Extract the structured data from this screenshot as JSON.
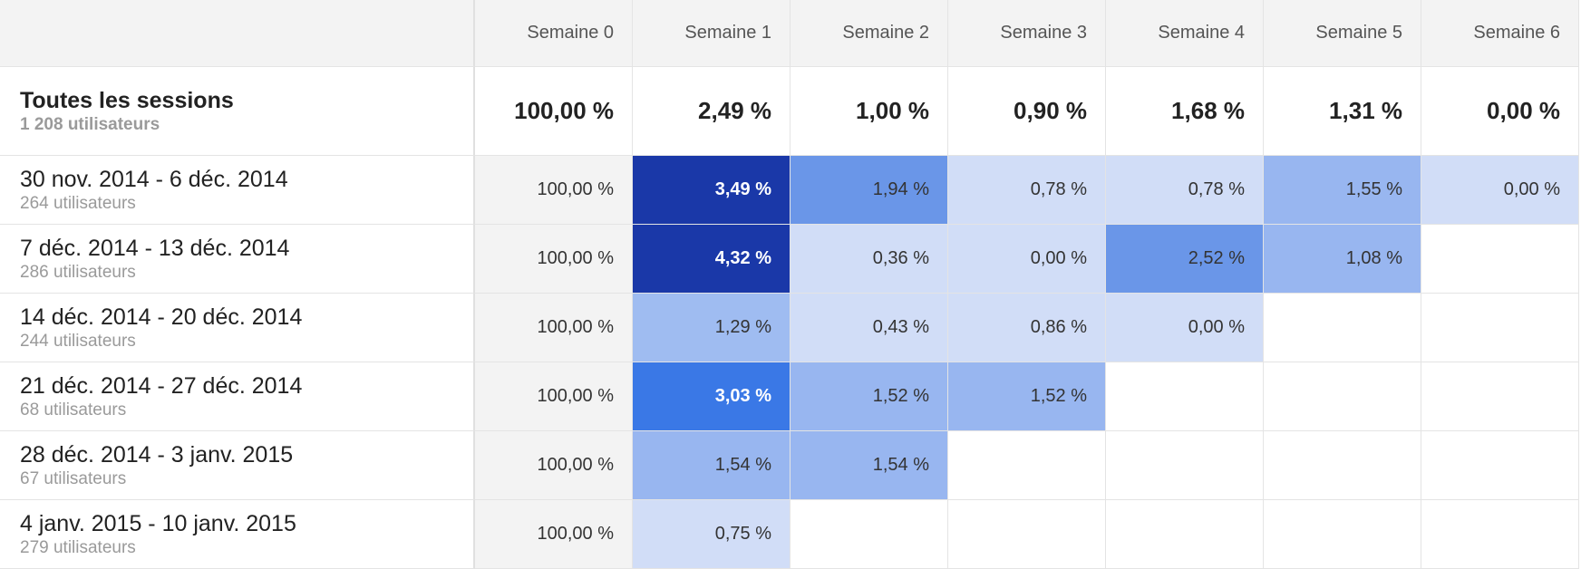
{
  "columns": [
    "Semaine 0",
    "Semaine 1",
    "Semaine 2",
    "Semaine 3",
    "Semaine 4",
    "Semaine 5",
    "Semaine 6"
  ],
  "total": {
    "label": "Toutes les sessions",
    "users": "1 208 utilisateurs",
    "values": [
      "100,00 %",
      "2,49 %",
      "1,00 %",
      "0,90 %",
      "1,68 %",
      "1,31 %",
      "0,00 %"
    ]
  },
  "rows": [
    {
      "label": "30 nov. 2014 - 6 déc. 2014",
      "users": "264 utilisateurs",
      "values": [
        "100,00 %",
        "3,49 %",
        "1,94 %",
        "0,78 %",
        "0,78 %",
        "1,55 %",
        "0,00 %"
      ],
      "colors": [
        "#f3f3f3",
        "#1a38a8",
        "#6a96e8",
        "#d1ddf7",
        "#d1ddf7",
        "#98b6f0",
        "#d1ddf7"
      ],
      "text_colors": [
        "#333333",
        "#ffffff",
        "#333333",
        "#333333",
        "#333333",
        "#333333",
        "#333333"
      ]
    },
    {
      "label": "7 déc. 2014 - 13 déc. 2014",
      "users": "286 utilisateurs",
      "values": [
        "100,00 %",
        "4,32 %",
        "0,36 %",
        "0,00 %",
        "2,52 %",
        "1,08 %"
      ],
      "colors": [
        "#f3f3f3",
        "#1a38a8",
        "#d1ddf7",
        "#d1ddf7",
        "#6a96e8",
        "#98b6f0"
      ],
      "text_colors": [
        "#333333",
        "#ffffff",
        "#333333",
        "#333333",
        "#333333",
        "#333333"
      ]
    },
    {
      "label": "14 déc. 2014 - 20 déc. 2014",
      "users": "244 utilisateurs",
      "values": [
        "100,00 %",
        "1,29 %",
        "0,43 %",
        "0,86 %",
        "0,00 %"
      ],
      "colors": [
        "#f3f3f3",
        "#9fbcf1",
        "#d1ddf7",
        "#d1ddf7",
        "#d1ddf7"
      ],
      "text_colors": [
        "#333333",
        "#333333",
        "#333333",
        "#333333",
        "#333333"
      ]
    },
    {
      "label": "21 déc. 2014 - 27 déc. 2014",
      "users": "68 utilisateurs",
      "values": [
        "100,00 %",
        "3,03 %",
        "1,52 %",
        "1,52 %"
      ],
      "colors": [
        "#f3f3f3",
        "#3a78e6",
        "#98b6f0",
        "#98b6f0"
      ],
      "text_colors": [
        "#333333",
        "#ffffff",
        "#333333",
        "#333333"
      ]
    },
    {
      "label": "28 déc. 2014 - 3 janv. 2015",
      "users": "67 utilisateurs",
      "values": [
        "100,00 %",
        "1,54 %",
        "1,54 %"
      ],
      "colors": [
        "#f3f3f3",
        "#98b6f0",
        "#98b6f0"
      ],
      "text_colors": [
        "#333333",
        "#333333",
        "#333333"
      ]
    },
    {
      "label": "4 janv. 2015 - 10 janv. 2015",
      "users": "279 utilisateurs",
      "values": [
        "100,00 %",
        "0,75 %"
      ],
      "colors": [
        "#f3f3f3",
        "#d1ddf7"
      ],
      "text_colors": [
        "#333333",
        "#333333"
      ]
    }
  ]
}
